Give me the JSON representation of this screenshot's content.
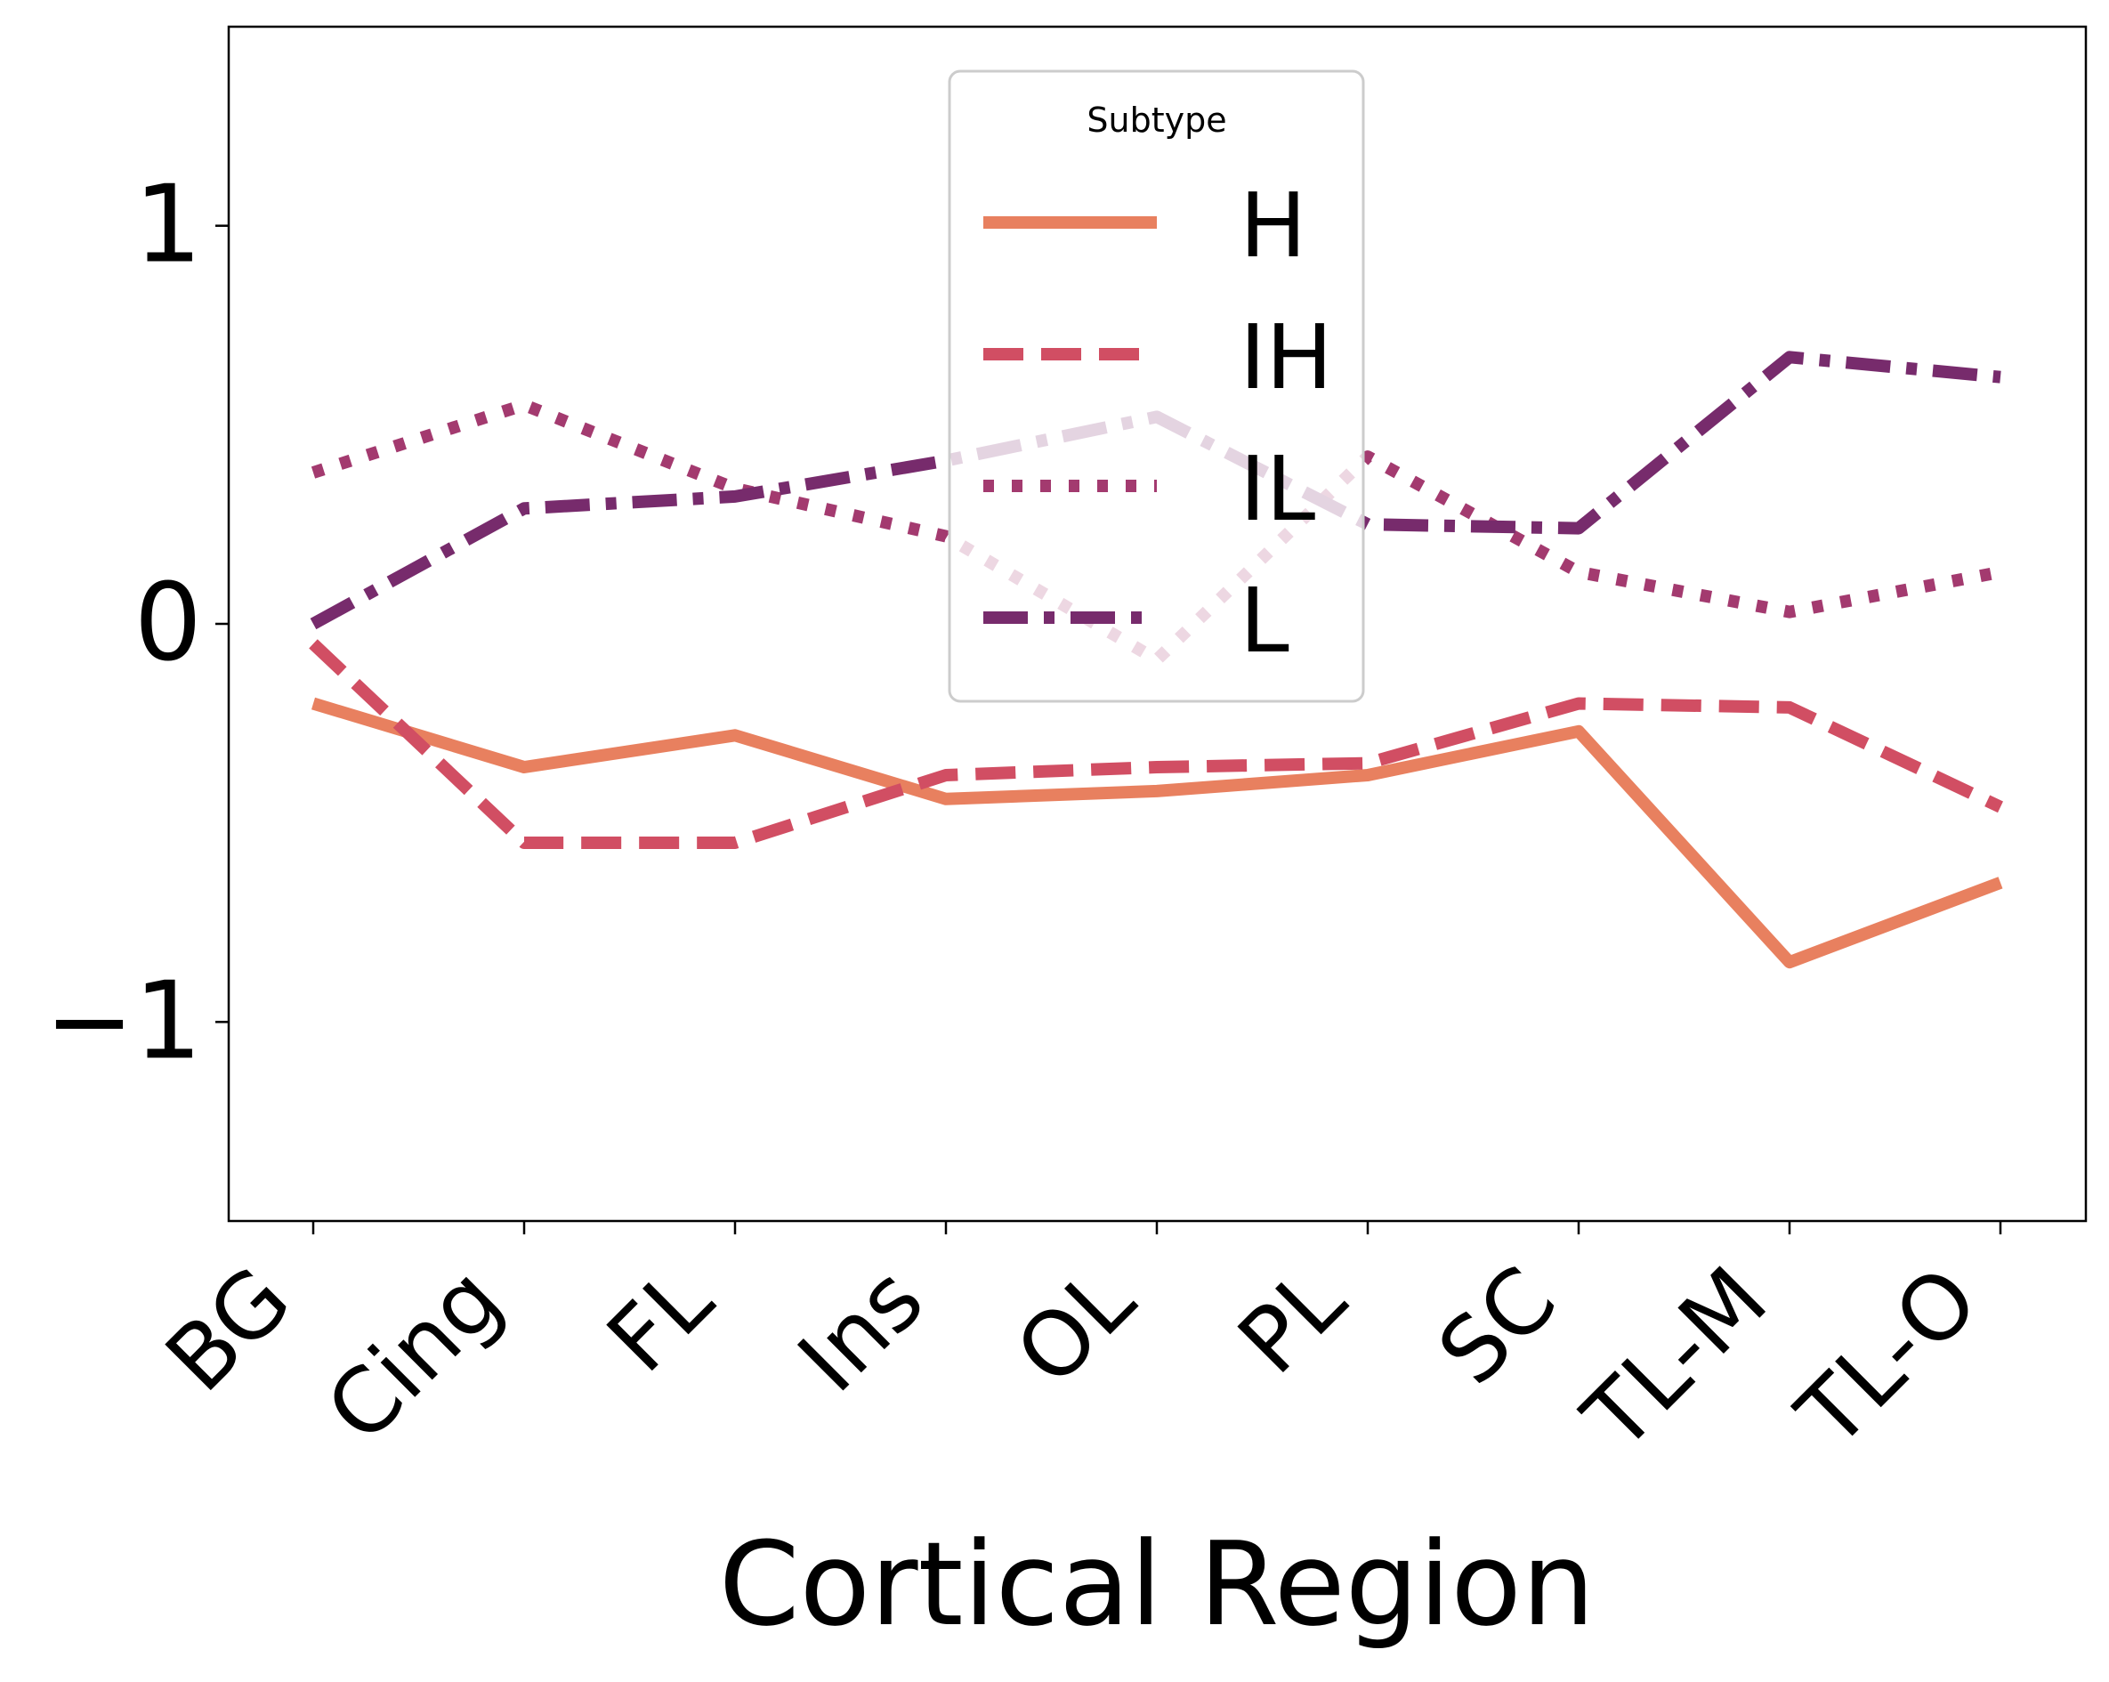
{
  "chart_data": {
    "type": "line",
    "xlabel": "Cortical Region",
    "ylabel": "",
    "categories": [
      "BG",
      "Cing",
      "FL",
      "Ins",
      "OL",
      "PL",
      "SC",
      "TL-M",
      "TL-O"
    ],
    "ylim": [
      -1.5,
      1.5
    ],
    "yticks": [
      {
        "value": 1,
        "label": "1"
      },
      {
        "value": 0,
        "label": "0"
      },
      {
        "value": -1,
        "label": "−1"
      }
    ],
    "grid": false,
    "legend": {
      "title": "Subtype",
      "placement": "upper-center"
    },
    "series": [
      {
        "name": "H",
        "style": "solid",
        "color": "#e8805f",
        "values": [
          -0.2,
          -0.36,
          -0.28,
          -0.44,
          -0.42,
          -0.38,
          -0.27,
          -0.85,
          -0.65
        ]
      },
      {
        "name": "IH",
        "style": "dashed",
        "color": "#d14e63",
        "values": [
          -0.05,
          -0.55,
          -0.55,
          -0.38,
          -0.36,
          -0.35,
          -0.2,
          -0.21,
          -0.46
        ]
      },
      {
        "name": "IL",
        "style": "dotted",
        "color": "#a33a6f",
        "values": [
          0.38,
          0.55,
          0.34,
          0.22,
          -0.09,
          0.42,
          0.13,
          0.03,
          0.13
        ]
      },
      {
        "name": "L",
        "style": "dashdot",
        "color": "#772b6c",
        "values": [
          0.0,
          0.29,
          0.32,
          0.41,
          0.52,
          0.25,
          0.24,
          0.67,
          0.62
        ]
      }
    ]
  }
}
